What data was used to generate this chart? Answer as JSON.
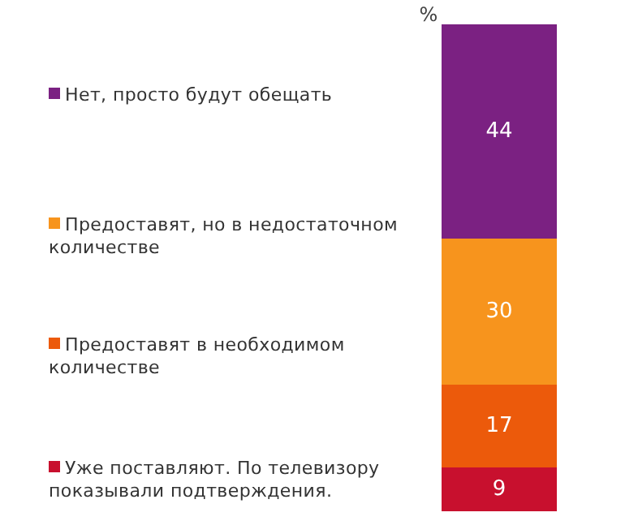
{
  "chart_data": {
    "type": "bar",
    "stacked": true,
    "ylabel": "%",
    "categories": [
      null
    ],
    "data_labels": true,
    "legend": "left",
    "series": [
      {
        "name": "Уже поставляют. По телевизору показывали подтверждения.",
        "color": "#c8102e",
        "values": [
          9
        ]
      },
      {
        "name": "Предоставят в необходимом количестве",
        "color": "#ec5a0b",
        "values": [
          17
        ]
      },
      {
        "name": "Предоставят, но в недостаточном количестве",
        "color": "#f7941d",
        "values": [
          30
        ]
      },
      {
        "name": "Нет, просто будут обещать",
        "color": "#7b2182",
        "values": [
          44
        ]
      }
    ]
  }
}
